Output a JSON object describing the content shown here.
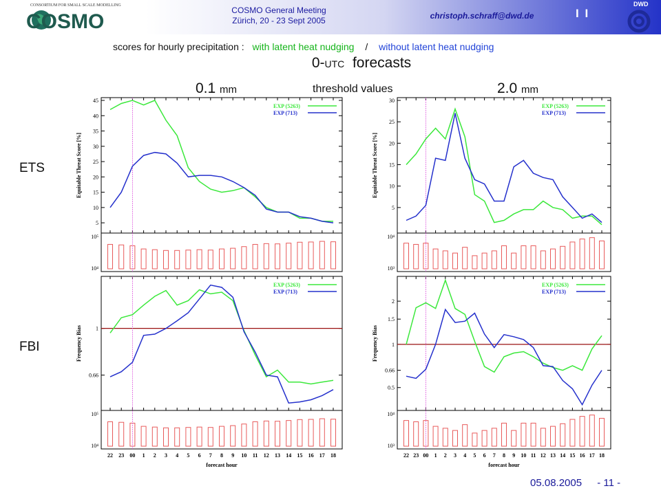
{
  "header": {
    "logo_text": "COSMO",
    "logo_tagline": "CONSORTIUM FOR SMALL SCALE MODELLING",
    "meeting_title": "COSMO General Meeting",
    "meeting_place": "Zürich, 20 - 23 Sept 2005",
    "email": "christoph.schraff@dwd.de",
    "marker": "I I",
    "dwd_label": "DWD"
  },
  "titles": {
    "subtitle_prefix": "scores for hourly precipitation :",
    "subtitle_green": "with latent heat nudging",
    "subtitle_sep": "/",
    "subtitle_blue": "without latent heat nudging",
    "forecast_pre": "0-",
    "forecast_utc": "UTC",
    "forecast_post": "forecasts",
    "threshold_left_value": "0.1",
    "threshold_left_unit": "mm",
    "threshold_mid": "threshold values",
    "threshold_right_value": "2.0",
    "threshold_right_unit": "mm"
  },
  "row_labels": {
    "ets": "ETS",
    "fbi": "FBI"
  },
  "footer": {
    "date": "05.08.2005",
    "page": "- 11 -"
  },
  "colors": {
    "green": "#3be83b",
    "blue": "#2430cc",
    "bars": "#e85a5a",
    "unity": "#9a1010",
    "vline": "#e060e0"
  },
  "chart_data": [
    {
      "id": "ets_01",
      "type": "line",
      "x": [
        "22",
        "23",
        "00",
        "1",
        "2",
        "3",
        "4",
        "5",
        "6",
        "7",
        "8",
        "9",
        "10",
        "11",
        "12",
        "13",
        "14",
        "15",
        "16",
        "17",
        "18"
      ],
      "xlabel": "",
      "ylabel": "Equitable Threat Score [%]",
      "ylim": [
        3,
        45
      ],
      "yticks": [
        5,
        10,
        15,
        20,
        25,
        30,
        35,
        40,
        45
      ],
      "series": [
        {
          "name": "EXP (5263)",
          "color": "green",
          "values": [
            42,
            44,
            45,
            43.5,
            45,
            38.5,
            33.5,
            23,
            18.5,
            16,
            15,
            15.5,
            16.5,
            13.5,
            10,
            8.5,
            8.5,
            6.5,
            6.5,
            5.5,
            5.5
          ]
        },
        {
          "name": "EXP (713)",
          "color": "blue",
          "values": [
            10,
            15,
            23.5,
            27,
            28,
            27.5,
            24.5,
            20,
            20.5,
            20.5,
            20,
            18.5,
            16.5,
            14,
            9.5,
            8.5,
            8.5,
            7,
            6.5,
            5.5,
            5
          ]
        }
      ]
    },
    {
      "id": "ets_20",
      "type": "line",
      "x": [
        "22",
        "23",
        "00",
        "1",
        "2",
        "3",
        "4",
        "5",
        "6",
        "7",
        "8",
        "9",
        "10",
        "11",
        "12",
        "13",
        "14",
        "15",
        "16",
        "17",
        "18"
      ],
      "xlabel": "",
      "ylabel": "Equitable Threat Score [%]",
      "ylim": [
        0,
        30
      ],
      "yticks": [
        5,
        10,
        15,
        20,
        25,
        30
      ],
      "series": [
        {
          "name": "EXP (5263)",
          "color": "green",
          "values": [
            15,
            17.5,
            21,
            23.5,
            21,
            28,
            21.5,
            8,
            6.5,
            1.5,
            2,
            3.5,
            4.5,
            4.5,
            6.5,
            5,
            4.5,
            2.5,
            3,
            3,
            1
          ]
        },
        {
          "name": "EXP (713)",
          "color": "blue",
          "values": [
            2,
            3,
            5.5,
            16.5,
            16,
            27,
            16.5,
            11.5,
            10.5,
            6.5,
            6.5,
            14.5,
            16,
            13,
            12,
            11.5,
            7.5,
            5,
            2.5,
            3.5,
            1.5
          ]
        }
      ]
    },
    {
      "id": "fbi_01",
      "type": "line",
      "x": [
        "22",
        "23",
        "00",
        "1",
        "2",
        "3",
        "4",
        "5",
        "6",
        "7",
        "8",
        "9",
        "10",
        "11",
        "12",
        "13",
        "14",
        "15",
        "16",
        "17",
        "18"
      ],
      "xlabel": "",
      "ylabel": "Frequency Bias",
      "y_scale": "log",
      "ylim": [
        0.5,
        1.55
      ],
      "ytick_labels": [
        "0.66",
        "1"
      ],
      "yticks": [
        0.66,
        1
      ],
      "unity_line": 1,
      "series": [
        {
          "name": "EXP (5263)",
          "color": "green",
          "values": [
            0.96,
            1.1,
            1.13,
            1.23,
            1.33,
            1.4,
            1.23,
            1.28,
            1.41,
            1.36,
            1.38,
            1.28,
            0.98,
            0.79,
            0.65,
            0.69,
            0.62,
            0.62,
            0.61,
            0.62,
            0.63
          ]
        },
        {
          "name": "EXP (713)",
          "color": "blue",
          "values": [
            0.65,
            0.68,
            0.74,
            0.94,
            0.95,
            1.0,
            1.07,
            1.15,
            1.3,
            1.47,
            1.44,
            1.32,
            0.97,
            0.81,
            0.66,
            0.65,
            0.515,
            0.52,
            0.53,
            0.55,
            0.58
          ]
        }
      ]
    },
    {
      "id": "fbi_20",
      "type": "line",
      "x": [
        "22",
        "23",
        "00",
        "1",
        "2",
        "3",
        "4",
        "5",
        "6",
        "7",
        "8",
        "9",
        "10",
        "11",
        "12",
        "13",
        "14",
        "15",
        "16",
        "17",
        "18"
      ],
      "xlabel": "",
      "ylabel": "Frequency Bias",
      "y_scale": "log",
      "ylim": [
        0.37,
        2.85
      ],
      "ytick_labels": [
        "0.5",
        "0.66",
        "1",
        "1.5",
        "2"
      ],
      "yticks": [
        0.5,
        0.66,
        1,
        1.5,
        2
      ],
      "unity_line": 1,
      "series": [
        {
          "name": "EXP (5263)",
          "color": "green",
          "values": [
            1.0,
            1.8,
            1.95,
            1.78,
            2.8,
            1.78,
            1.62,
            1.05,
            0.7,
            0.64,
            0.82,
            0.87,
            0.89,
            0.82,
            0.74,
            0.69,
            0.66,
            0.71,
            0.66,
            0.93,
            1.15
          ]
        },
        {
          "name": "EXP (713)",
          "color": "blue",
          "values": [
            0.6,
            0.58,
            0.67,
            1.0,
            1.75,
            1.42,
            1.45,
            1.65,
            1.18,
            0.95,
            1.17,
            1.13,
            1.08,
            0.95,
            0.71,
            0.7,
            0.56,
            0.49,
            0.38,
            0.52,
            0.66
          ]
        }
      ]
    },
    {
      "id": "bars_ets_01",
      "type": "bar",
      "x": [
        "22",
        "23",
        "00",
        "1",
        "2",
        "3",
        "4",
        "5",
        "6",
        "7",
        "8",
        "9",
        "10",
        "11",
        "12",
        "13",
        "14",
        "15",
        "16",
        "17",
        "18"
      ],
      "y_scale": "log",
      "ylim": [
        10000,
        100000
      ],
      "ytick_labels": [
        "10⁴",
        "10⁵"
      ],
      "values": [
        55000,
        53000,
        50000,
        40000,
        38000,
        36000,
        36000,
        37000,
        38000,
        37000,
        40000,
        42000,
        47000,
        55000,
        58000,
        57000,
        60000,
        64000,
        65000,
        68000,
        66000
      ]
    },
    {
      "id": "bars_ets_20",
      "type": "bar",
      "x": [
        "22",
        "23",
        "00",
        "1",
        "2",
        "3",
        "4",
        "5",
        "6",
        "7",
        "8",
        "9",
        "10",
        "11",
        "12",
        "13",
        "14",
        "15",
        "16",
        "17",
        "18"
      ],
      "y_scale": "log",
      "ylim": [
        1000,
        10000
      ],
      "ytick_labels": [
        "10³",
        "10⁴"
      ],
      "values": [
        6000,
        5500,
        6000,
        4000,
        3500,
        3000,
        4500,
        2500,
        3000,
        3500,
        5000,
        3000,
        5000,
        5000,
        3500,
        4000,
        4800,
        6500,
        8000,
        8800,
        7000
      ]
    },
    {
      "id": "bars_fbi_01",
      "type": "bar",
      "x": [
        "22",
        "23",
        "00",
        "1",
        "2",
        "3",
        "4",
        "5",
        "6",
        "7",
        "8",
        "9",
        "10",
        "11",
        "12",
        "13",
        "14",
        "15",
        "16",
        "17",
        "18"
      ],
      "y_scale": "log",
      "ylim": [
        10000,
        100000
      ],
      "ytick_labels": [
        "10⁴",
        "10⁵"
      ],
      "values": [
        55000,
        53000,
        50000,
        40000,
        38000,
        36000,
        36000,
        37000,
        38000,
        37000,
        40000,
        42000,
        47000,
        55000,
        58000,
        57000,
        60000,
        64000,
        65000,
        68000,
        66000
      ]
    },
    {
      "id": "bars_fbi_20",
      "type": "bar",
      "x": [
        "22",
        "23",
        "00",
        "1",
        "2",
        "3",
        "4",
        "5",
        "6",
        "7",
        "8",
        "9",
        "10",
        "11",
        "12",
        "13",
        "14",
        "15",
        "16",
        "17",
        "18"
      ],
      "y_scale": "log",
      "ylim": [
        1000,
        10000
      ],
      "ytick_labels": [
        "10³",
        "10⁴"
      ],
      "values": [
        6000,
        5500,
        6000,
        4000,
        3500,
        3000,
        4500,
        2500,
        3000,
        3500,
        5000,
        3000,
        5000,
        5000,
        3500,
        4000,
        4800,
        6500,
        8000,
        8800,
        7000
      ]
    }
  ],
  "xaxis_title": "forecast hour"
}
